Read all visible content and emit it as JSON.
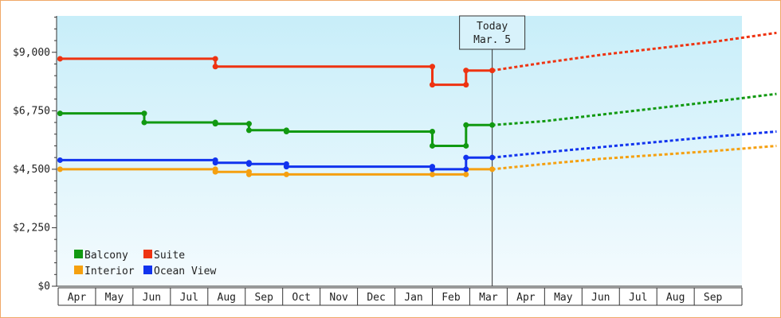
{
  "chart_data": {
    "type": "line",
    "title": "",
    "xlabel": "",
    "ylabel": "",
    "y_ticks": [
      "$0",
      "$2,250",
      "$4,500",
      "$6,750",
      "$9,000"
    ],
    "ylim": [
      0,
      10400
    ],
    "x_ticks": [
      "Apr",
      "May",
      "Jun",
      "Jul",
      "Aug",
      "Sep",
      "Oct",
      "Nov",
      "Dec",
      "Jan",
      "Feb",
      "Mar",
      "Apr",
      "May",
      "Jun",
      "Jul",
      "Aug",
      "Sep"
    ],
    "today": {
      "line1": "Today",
      "line2": "Mar. 5",
      "x": 11.1
    },
    "legend": {
      "placement": "bottom-left"
    },
    "grid": false,
    "background": {
      "top": "#c8eef9",
      "bottom": "#f4fbfe"
    },
    "series": [
      {
        "name": "Balcony",
        "color": "#119911",
        "points": [
          [
            -0.45,
            6650
          ],
          [
            1.8,
            6650
          ],
          [
            1.8,
            6300
          ],
          [
            3.7,
            6300
          ],
          [
            3.7,
            6250
          ],
          [
            4.6,
            6250
          ],
          [
            4.6,
            6000
          ],
          [
            5.6,
            6000
          ],
          [
            5.6,
            5950
          ],
          [
            9.5,
            5950
          ],
          [
            9.5,
            5400
          ],
          [
            10.4,
            5400
          ],
          [
            10.4,
            6200
          ],
          [
            11.1,
            6200
          ]
        ],
        "markers": [
          [
            -0.45,
            6650
          ],
          [
            1.8,
            6650
          ],
          [
            1.8,
            6300
          ],
          [
            3.7,
            6300
          ],
          [
            3.7,
            6250
          ],
          [
            4.6,
            6250
          ],
          [
            4.6,
            6000
          ],
          [
            5.6,
            6000
          ],
          [
            5.6,
            5950
          ],
          [
            9.5,
            5950
          ],
          [
            9.5,
            5400
          ],
          [
            10.4,
            5400
          ],
          [
            10.4,
            6200
          ],
          [
            11.1,
            6200
          ]
        ],
        "forecast": [
          [
            11.1,
            6200
          ],
          [
            12.5,
            6350
          ],
          [
            14,
            6600
          ],
          [
            15.5,
            6850
          ],
          [
            17,
            7100
          ],
          [
            18.7,
            7400
          ]
        ]
      },
      {
        "name": "Suite",
        "color": "#ee3311",
        "points": [
          [
            -0.45,
            8750
          ],
          [
            3.7,
            8750
          ],
          [
            3.7,
            8450
          ],
          [
            9.5,
            8450
          ],
          [
            9.5,
            7750
          ],
          [
            10.4,
            7750
          ],
          [
            10.4,
            8300
          ],
          [
            11.1,
            8300
          ]
        ],
        "markers": [
          [
            -0.45,
            8750
          ],
          [
            3.7,
            8750
          ],
          [
            3.7,
            8450
          ],
          [
            9.5,
            8450
          ],
          [
            9.5,
            7750
          ],
          [
            10.4,
            7750
          ],
          [
            10.4,
            8300
          ],
          [
            11.1,
            8300
          ]
        ],
        "forecast": [
          [
            11.1,
            8300
          ],
          [
            12.5,
            8600
          ],
          [
            14,
            8900
          ],
          [
            15.5,
            9150
          ],
          [
            17,
            9400
          ],
          [
            18.7,
            9750
          ]
        ]
      },
      {
        "name": "Interior",
        "color": "#f5a010",
        "points": [
          [
            -0.45,
            4500
          ],
          [
            3.7,
            4500
          ],
          [
            3.7,
            4400
          ],
          [
            4.6,
            4400
          ],
          [
            4.6,
            4300
          ],
          [
            9.5,
            4300
          ],
          [
            10.4,
            4300
          ],
          [
            10.4,
            4500
          ],
          [
            11.1,
            4500
          ]
        ],
        "markers": [
          [
            -0.45,
            4500
          ],
          [
            3.7,
            4500
          ],
          [
            3.7,
            4400
          ],
          [
            4.6,
            4400
          ],
          [
            4.6,
            4300
          ],
          [
            5.6,
            4300
          ],
          [
            9.5,
            4300
          ],
          [
            10.4,
            4300
          ],
          [
            11.1,
            4500
          ]
        ],
        "forecast": [
          [
            11.1,
            4500
          ],
          [
            12.5,
            4700
          ],
          [
            14,
            4900
          ],
          [
            15.5,
            5050
          ],
          [
            17,
            5200
          ],
          [
            18.7,
            5400
          ]
        ]
      },
      {
        "name": "Ocean View",
        "color": "#1133ee",
        "points": [
          [
            -0.45,
            4850
          ],
          [
            3.7,
            4850
          ],
          [
            3.7,
            4750
          ],
          [
            4.6,
            4750
          ],
          [
            4.6,
            4700
          ],
          [
            5.6,
            4700
          ],
          [
            5.6,
            4600
          ],
          [
            9.5,
            4600
          ],
          [
            9.5,
            4500
          ],
          [
            10.4,
            4500
          ],
          [
            10.4,
            4950
          ],
          [
            11.1,
            4950
          ]
        ],
        "markers": [
          [
            -0.45,
            4850
          ],
          [
            3.7,
            4850
          ],
          [
            3.7,
            4750
          ],
          [
            4.6,
            4750
          ],
          [
            4.6,
            4700
          ],
          [
            5.6,
            4700
          ],
          [
            5.6,
            4600
          ],
          [
            9.5,
            4600
          ],
          [
            9.5,
            4500
          ],
          [
            10.4,
            4500
          ],
          [
            10.4,
            4950
          ],
          [
            11.1,
            4950
          ]
        ],
        "forecast": [
          [
            11.1,
            4950
          ],
          [
            12.5,
            5150
          ],
          [
            14,
            5350
          ],
          [
            15.5,
            5550
          ],
          [
            17,
            5750
          ],
          [
            18.7,
            5950
          ]
        ]
      }
    ]
  }
}
